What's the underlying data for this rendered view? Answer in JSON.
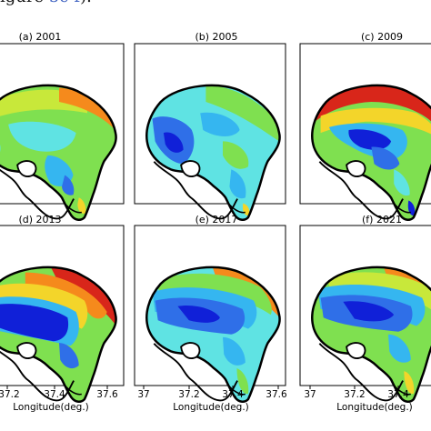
{
  "caption": {
    "prefix": "igure ",
    "ref": "5c-f",
    "suffix": ")."
  },
  "panels": [
    {
      "title": "(a) 2001"
    },
    {
      "title": "(b) 2005"
    },
    {
      "title": "(c) 2009"
    },
    {
      "title": "(d) 2013"
    },
    {
      "title": "(e) 2017"
    },
    {
      "title": "(f) 2021"
    }
  ],
  "axes": {
    "xlabel": "Longitude(deg.)",
    "bottom_left_ticks": [
      "37.2",
      "37.4",
      "37.6"
    ],
    "bottom_mid_ticks": [
      "37",
      "37.2",
      "37.4",
      "37.6"
    ],
    "bottom_right_ticks": [
      "37",
      "37.2",
      "37.4"
    ]
  },
  "colors": {
    "deep_blue": "#1020d8",
    "blue": "#2f6fe8",
    "light_blue": "#35b6f0",
    "cyan": "#5fe3e3",
    "green": "#7fe050",
    "yellow_green": "#c8e83a",
    "yellow": "#f3d52a",
    "orange": "#f58a1c",
    "red": "#d8261a"
  }
}
